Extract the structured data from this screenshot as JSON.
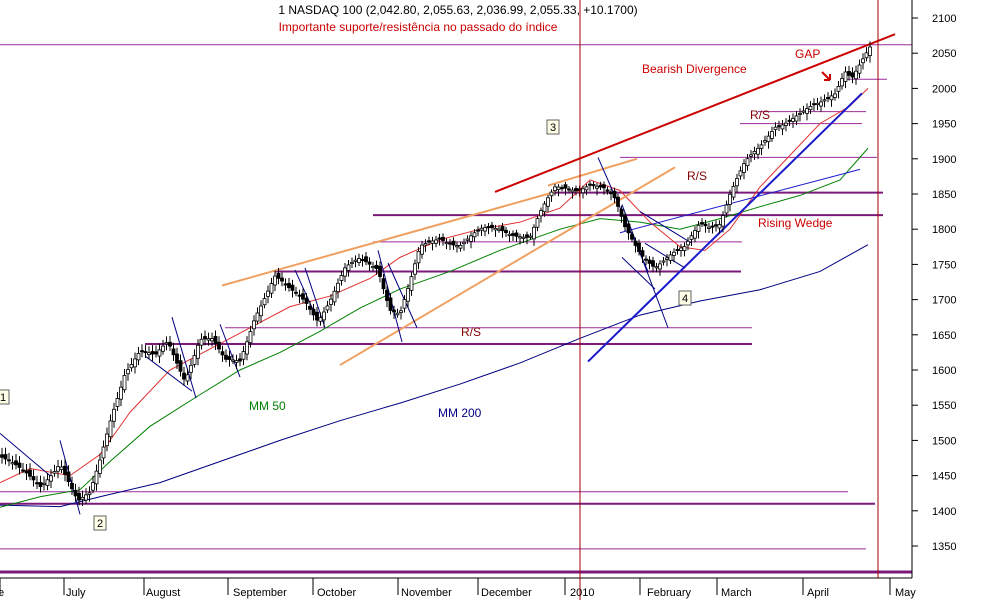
{
  "chart_data": {
    "type": "candlestick",
    "title": "1 NASDAQ 100 (2,042.80, 2,055.63, 2,036.99, 2,055.33, +10.1700)",
    "subtitle": "Importante suporte/resistência no passado do índice",
    "x_tick_labels": [
      "e",
      "July",
      "August",
      "September",
      "October",
      "November",
      "December",
      "2010",
      "February",
      "March",
      "April",
      "May"
    ],
    "y_ticks": [
      1350,
      1400,
      1450,
      1500,
      1550,
      1600,
      1650,
      1700,
      1750,
      1800,
      1850,
      1900,
      1950,
      2000,
      2050,
      2100
    ],
    "ylim": [
      1310,
      2120
    ],
    "grid": false,
    "moving_averages": [
      {
        "name": "MM 50",
        "color": "#008000"
      },
      {
        "name": "MM 200",
        "color": "#000080"
      }
    ],
    "annotations": [
      {
        "text": "Bearish Divergence",
        "color": "#cc0000"
      },
      {
        "text": "GAP",
        "color": "#cc0000"
      },
      {
        "text": "R/S",
        "color": "#800000"
      },
      {
        "text": "R/S",
        "color": "#800000"
      },
      {
        "text": "R/S",
        "color": "#800000"
      },
      {
        "text": "Rising Wedge",
        "color": "#cc0000"
      },
      {
        "text": "MM 50",
        "color": "#008000"
      },
      {
        "text": "MM 200",
        "color": "#000080"
      }
    ],
    "wave_labels": [
      "1",
      "2",
      "3",
      "4"
    ],
    "horizontal_levels": [
      1313,
      1346,
      1410,
      1427,
      1637,
      1660,
      1740,
      1782,
      1820,
      1852,
      1902,
      1950,
      1967,
      2013,
      2062
    ]
  }
}
